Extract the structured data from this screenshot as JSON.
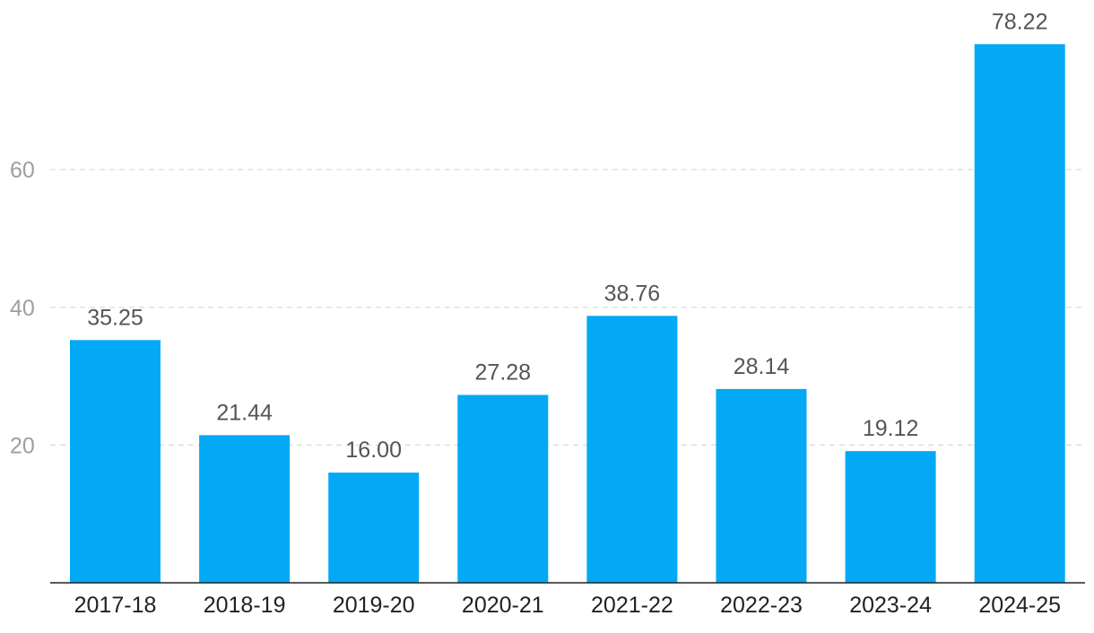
{
  "chart_data": {
    "type": "bar",
    "categories": [
      "2017-18",
      "2018-19",
      "2019-20",
      "2020-21",
      "2021-22",
      "2022-23",
      "2023-24",
      "2024-25"
    ],
    "values": [
      35.25,
      21.44,
      16.0,
      27.28,
      38.76,
      28.14,
      19.12,
      78.22
    ],
    "value_labels": [
      "35.25",
      "21.44",
      "16.00",
      "27.28",
      "38.76",
      "28.14",
      "19.12",
      "78.22"
    ],
    "yticks": [
      20,
      40,
      60
    ],
    "ylim": [
      0,
      80
    ],
    "grid": true,
    "bar_color": "#03a9f4",
    "title": "",
    "xlabel": "",
    "ylabel": ""
  }
}
